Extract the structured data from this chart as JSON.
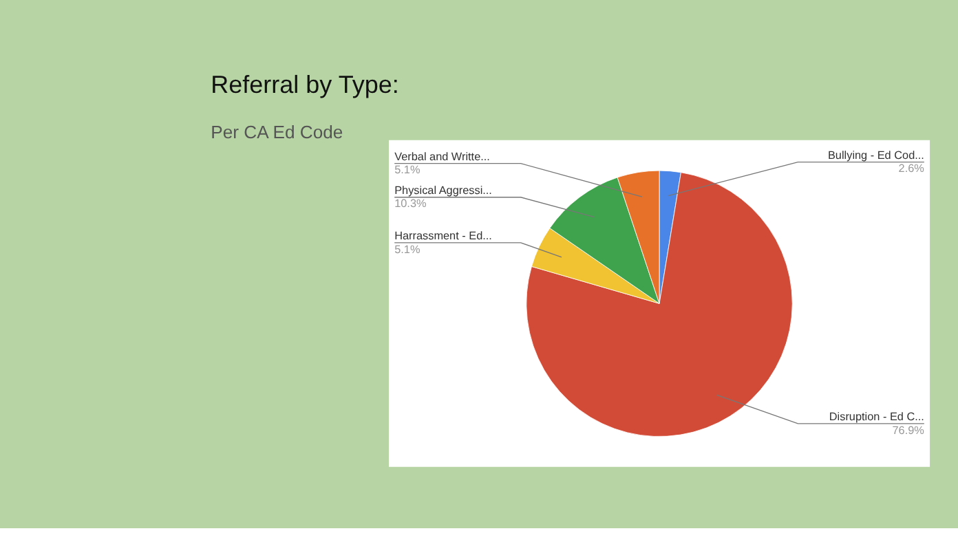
{
  "chart_data": {
    "type": "pie",
    "title": "Referral by Type:",
    "subtitle": "Per CA Ed Code",
    "categories": [
      "Bullying - Ed Cod...",
      "Disruption - Ed C...",
      "Harrassment - Ed...",
      "Physical Aggressi...",
      "Verbal and Writte..."
    ],
    "values": [
      2.6,
      76.9,
      5.1,
      10.3,
      5.1
    ],
    "colors": [
      "#4a86e8",
      "#d24b37",
      "#f1c232",
      "#3fa34d",
      "#e8712a"
    ],
    "value_labels": [
      "2.6%",
      "76.9%",
      "5.1%",
      "10.3%",
      "5.1%"
    ],
    "legend": false
  }
}
